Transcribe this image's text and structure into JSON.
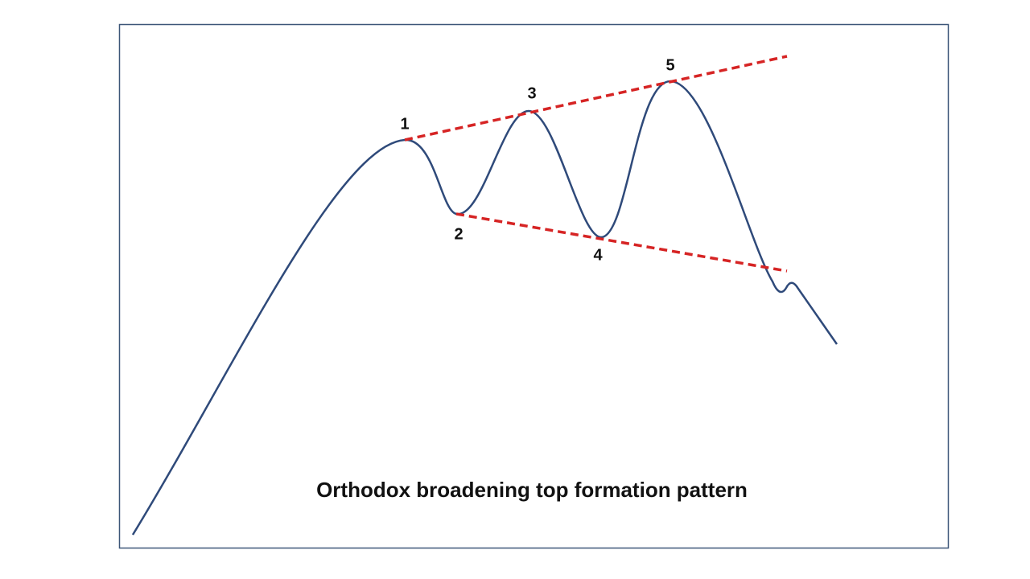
{
  "caption": "Orthodox broadening top formation pattern",
  "points": [
    {
      "label": "1"
    },
    {
      "label": "2"
    },
    {
      "label": "3"
    },
    {
      "label": "4"
    },
    {
      "label": "5"
    }
  ]
}
